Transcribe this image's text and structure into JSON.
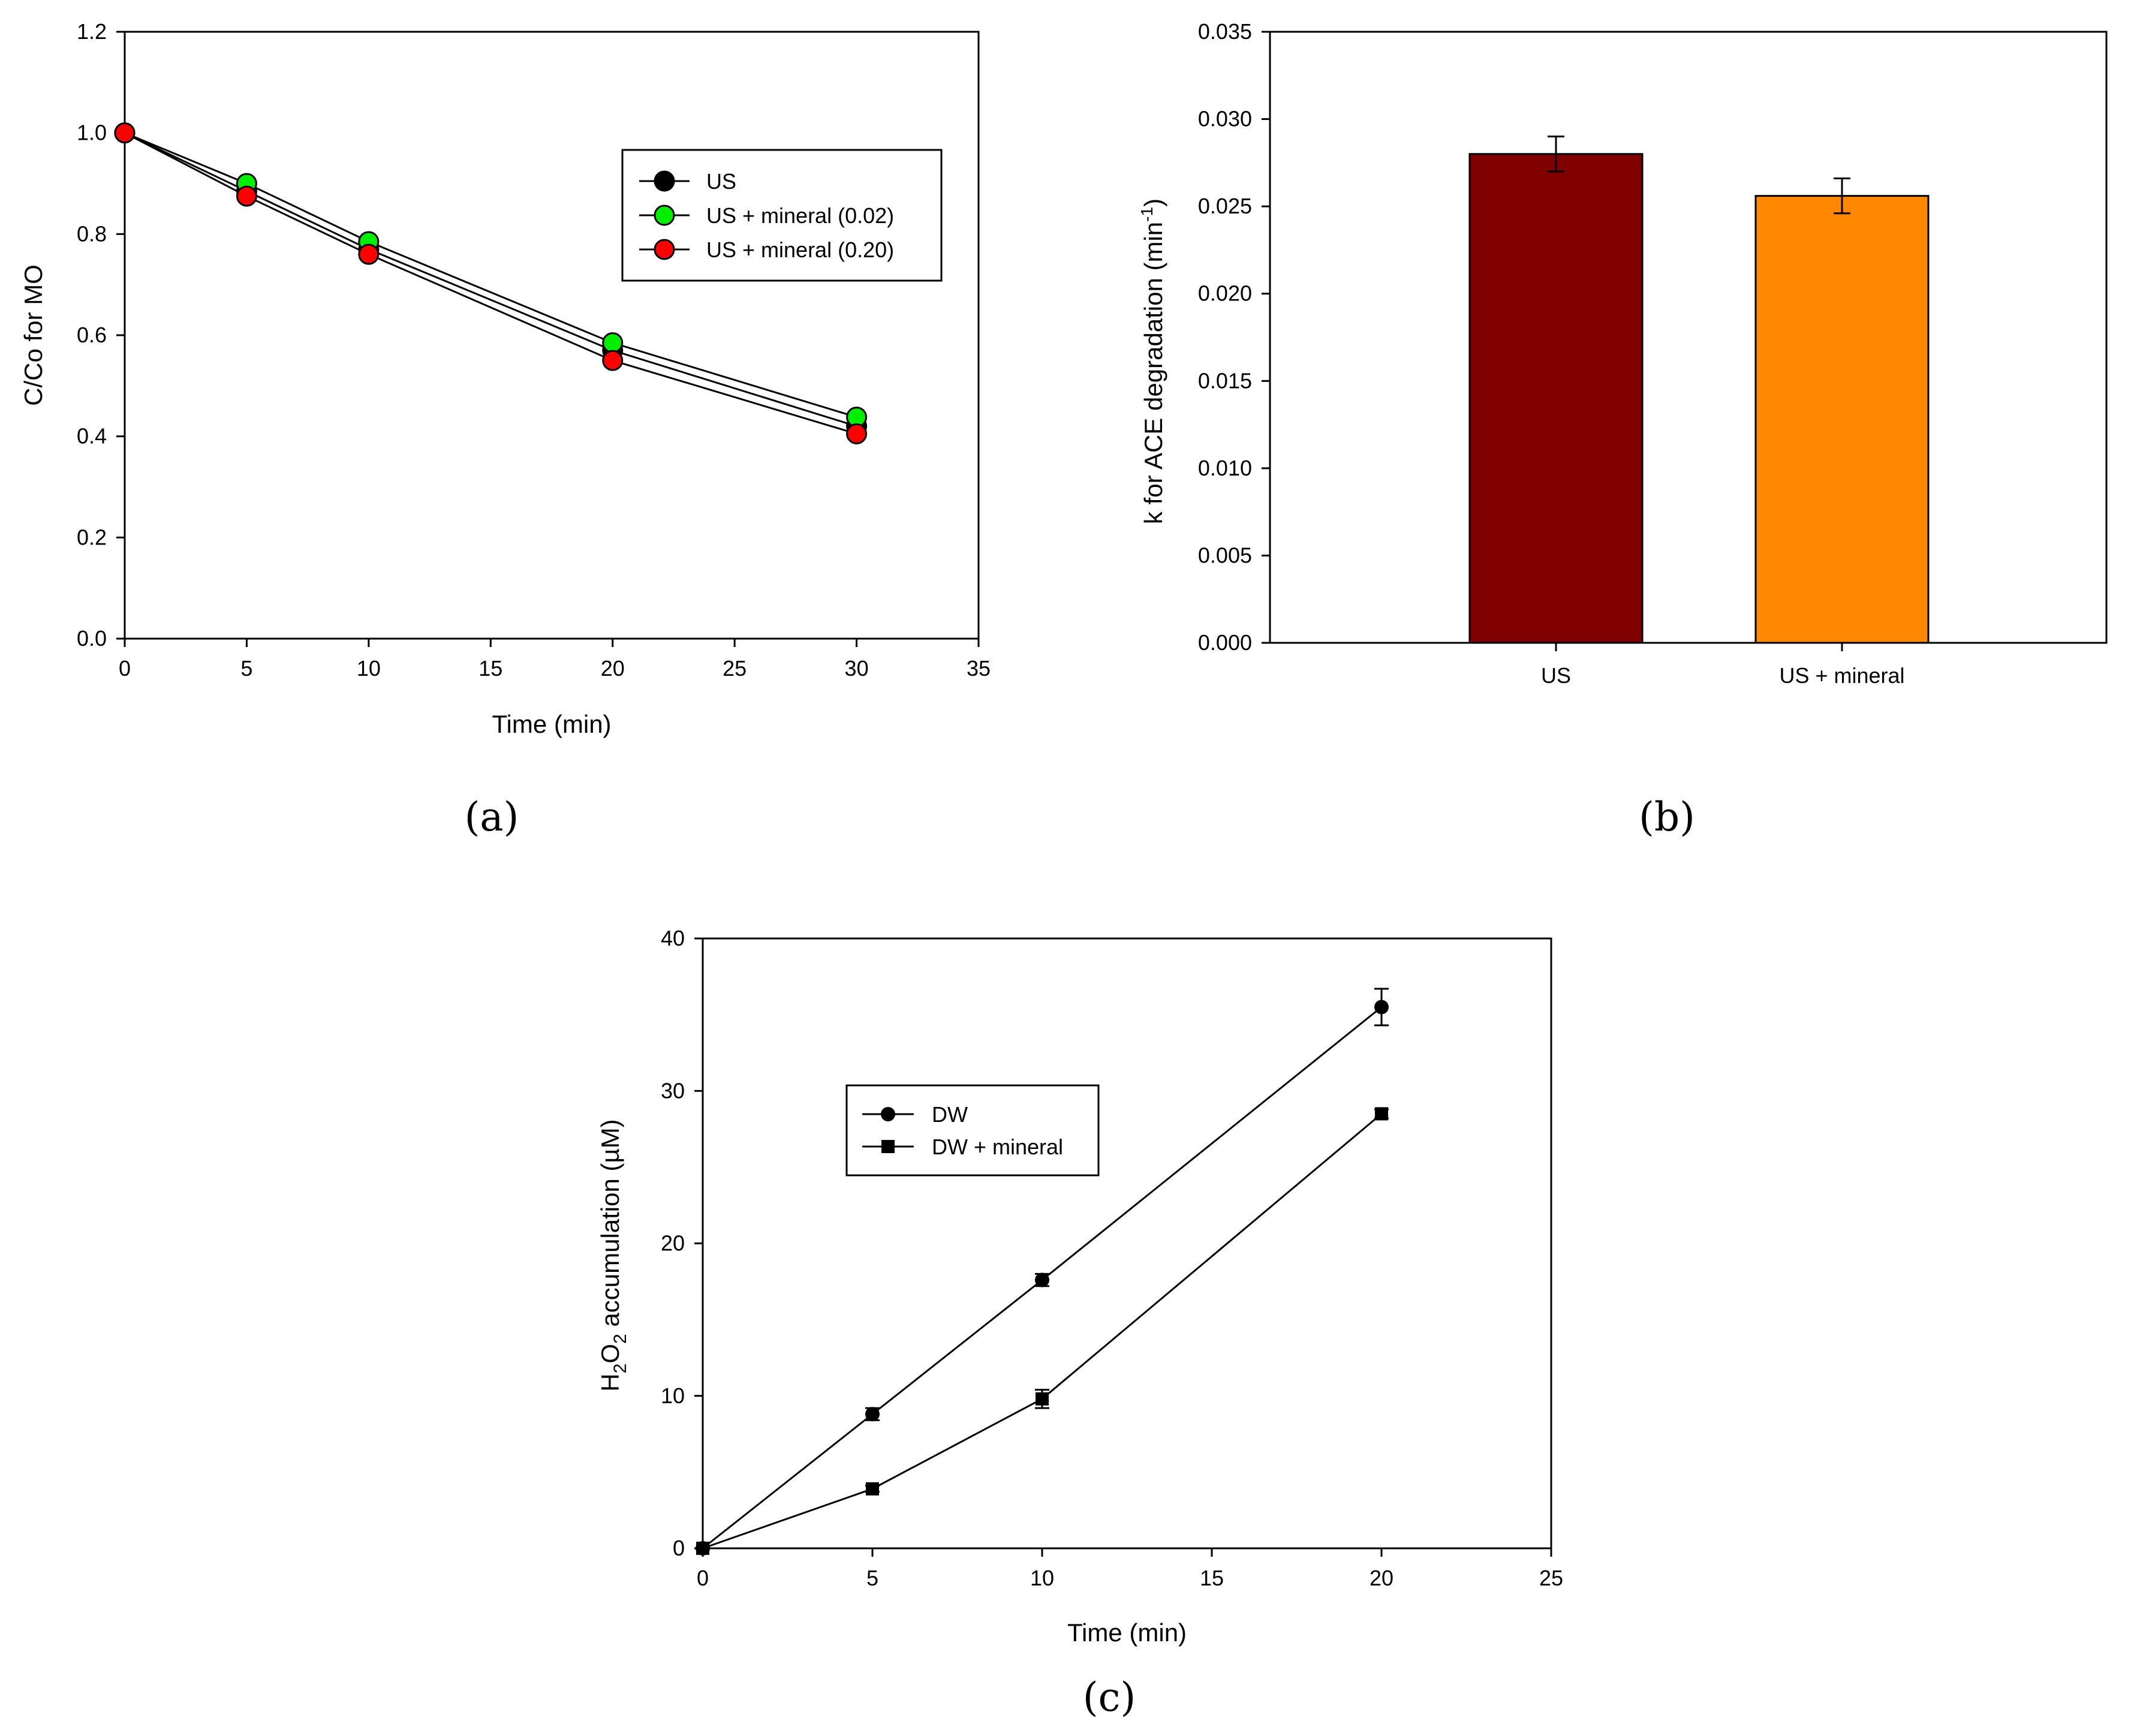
{
  "chart_data": [
    {
      "id": "a",
      "type": "line",
      "panel_label": "a",
      "xlabel": "Time (min)",
      "ylabel": "C/Co for MO",
      "xlim": [
        0,
        35
      ],
      "ylim": [
        0,
        1.2
      ],
      "xticks": [
        "0",
        "5",
        "10",
        "15",
        "20",
        "25",
        "30",
        "35"
      ],
      "yticks": [
        "0.0",
        "0.2",
        "0.4",
        "0.6",
        "0.8",
        "1.0",
        "1.2"
      ],
      "x": [
        0,
        5,
        10,
        20,
        30
      ],
      "series": [
        {
          "name": "US",
          "color": "#000000",
          "marker": "circle",
          "values": [
            1.0,
            0.885,
            0.77,
            0.57,
            0.42
          ]
        },
        {
          "name": "US + mineral (0.02)",
          "color": "#00ee00",
          "marker": "circle",
          "values": [
            1.0,
            0.9,
            0.785,
            0.585,
            0.438
          ]
        },
        {
          "name": "US + mineral (0.20)",
          "color": "#ff0000",
          "marker": "circle",
          "values": [
            1.0,
            0.875,
            0.76,
            0.55,
            0.405
          ]
        }
      ],
      "legend": "upper-right"
    },
    {
      "id": "b",
      "type": "bar",
      "panel_label": "b",
      "ylabel_main": "k  for ACE degradation (min",
      "ylabel_sup": "-1",
      "ylabel_end": ")",
      "ylim": [
        0,
        0.035
      ],
      "yticks": [
        "0.000",
        "0.005",
        "0.010",
        "0.015",
        "0.020",
        "0.025",
        "0.030",
        "0.035"
      ],
      "categories": [
        "US",
        "US + mineral"
      ],
      "values": [
        0.028,
        0.0256
      ],
      "errors": [
        0.001,
        0.001
      ],
      "colors": [
        "#800000",
        "#ff8800"
      ]
    },
    {
      "id": "c",
      "type": "line",
      "panel_label": "c",
      "xlabel": "Time (min)",
      "ylabel_h": "H",
      "ylabel_sub1": "2",
      "ylabel_o": "O",
      "ylabel_sub2": "2",
      "ylabel_rest": " accumulation (µM)",
      "xlim": [
        0,
        25
      ],
      "ylim": [
        0,
        40
      ],
      "xticks": [
        "0",
        "5",
        "10",
        "15",
        "20",
        "25"
      ],
      "yticks": [
        "0",
        "10",
        "20",
        "30",
        "40"
      ],
      "x": [
        0,
        5,
        10,
        20
      ],
      "series": [
        {
          "name": "DW",
          "marker": "circle",
          "values": [
            0,
            8.8,
            17.6,
            35.5
          ],
          "errors": [
            0,
            0.4,
            0.4,
            1.2
          ]
        },
        {
          "name": "DW + mineral",
          "marker": "square",
          "values": [
            0,
            3.9,
            9.8,
            28.5
          ],
          "errors": [
            0,
            0.2,
            0.6,
            0.3
          ]
        }
      ],
      "legend": "upper-left"
    }
  ]
}
